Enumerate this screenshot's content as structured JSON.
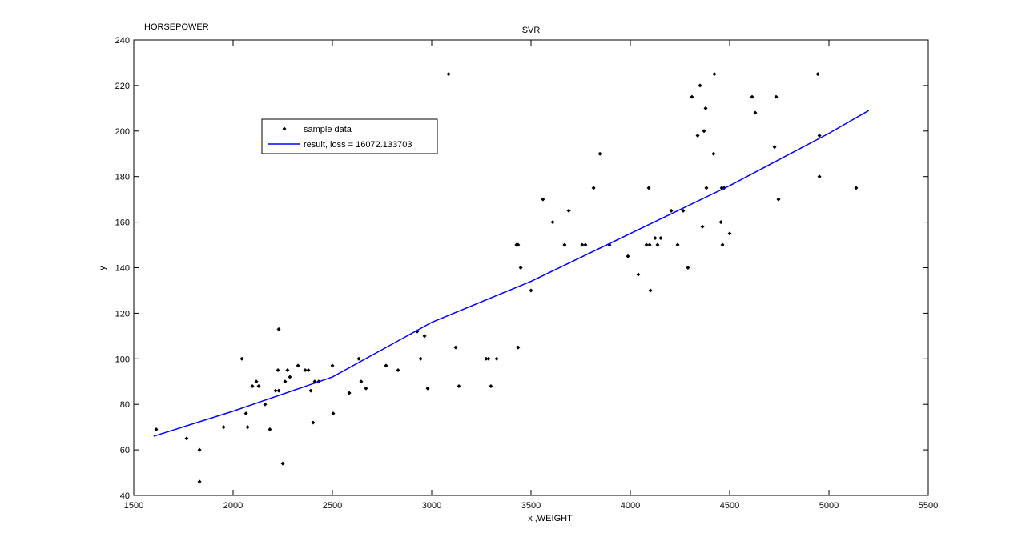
{
  "chart_data": {
    "type": "scatter",
    "title": "SVR",
    "annotation": "HORSEPOWER",
    "xlabel": "x ,WEIGHT",
    "ylabel": "y",
    "xlim": [
      1500,
      5500
    ],
    "xticks": [
      1500,
      2000,
      2500,
      3000,
      3500,
      4000,
      4500,
      5000,
      5500
    ],
    "ylim": [
      40,
      240
    ],
    "yticks": [
      40,
      60,
      80,
      100,
      120,
      140,
      160,
      180,
      200,
      220,
      240
    ],
    "grid": false,
    "legend": "upper-left",
    "series": [
      {
        "name": "sample data",
        "type": "scatter",
        "color": "#000000",
        "x": [
          1613,
          1766,
          1831,
          1831,
          1952,
          2044,
          2065,
          2073,
          2097,
          2117,
          2129,
          2161,
          2185,
          2214,
          2226,
          2230,
          2230,
          2250,
          2262,
          2274,
          2286,
          2327,
          2363,
          2379,
          2391,
          2403,
          2411,
          2431,
          2500,
          2504,
          2585,
          2633,
          2645,
          2669,
          2770,
          2831,
          2927,
          2944,
          2964,
          2980,
          3085,
          3121,
          3137,
          3274,
          3286,
          3298,
          3327,
          3427,
          3435,
          3435,
          3448,
          3500,
          3560,
          3609,
          3669,
          3690,
          3758,
          3774,
          3815,
          3847,
          3895,
          3988,
          4040,
          4081,
          4093,
          4097,
          4101,
          4125,
          4137,
          4153,
          4206,
          4238,
          4266,
          4290,
          4310,
          4339,
          4351,
          4363,
          4371,
          4379,
          4383,
          4419,
          4423,
          4456,
          4460,
          4464,
          4472,
          4500,
          4613,
          4629,
          4726,
          4734,
          4746,
          4944,
          4952,
          4952,
          5137
        ],
        "values": [
          69,
          65,
          60,
          46,
          70,
          100,
          76,
          70,
          88,
          90,
          88,
          80,
          69,
          86,
          95,
          86,
          113,
          54,
          90,
          95,
          92,
          97,
          95,
          95,
          86,
          72,
          90,
          90,
          97,
          76,
          85,
          100,
          90,
          87,
          97,
          95,
          112,
          100,
          110,
          87,
          225,
          105,
          88,
          100,
          100,
          88,
          100,
          150,
          105,
          150,
          140,
          130,
          170,
          160,
          150,
          165,
          150,
          150,
          175,
          190,
          150,
          145,
          137,
          150,
          175,
          150,
          130,
          153,
          150,
          153,
          165,
          150,
          165,
          140,
          215,
          198,
          220,
          158,
          200,
          210,
          175,
          190,
          225,
          160,
          175,
          150,
          175,
          155,
          215,
          208,
          193,
          215,
          170,
          225,
          198,
          180,
          175
        ]
      },
      {
        "name": "result, loss = 16072.133703",
        "type": "line",
        "color": "#0000ff",
        "x": [
          1600,
          2000,
          2500,
          3000,
          3500,
          4000,
          4500,
          5000,
          5200
        ],
        "values": [
          66,
          77,
          92,
          116,
          134,
          155,
          176,
          199,
          209
        ]
      }
    ]
  }
}
